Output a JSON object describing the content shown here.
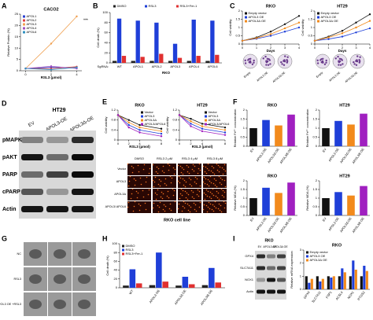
{
  "chart_data": [
    {
      "type": "line",
      "title": "CACO2",
      "ylabel": "Relative Protein (%)",
      "xlabel": "RSL3 (μmol)",
      "x": [
        0,
        2,
        4
      ],
      "xlim": [
        -0.4,
        4.4
      ],
      "xticks": [
        0,
        2,
        4
      ],
      "ylim": [
        0,
        25
      ],
      "yticks": [
        0,
        5,
        10,
        15,
        20,
        25
      ],
      "legend": "upper left",
      "annotation": "***",
      "series": [
        {
          "name": "APOL1",
          "color": "#2a3fd0",
          "values": [
            1,
            1.5,
            1.2
          ]
        },
        {
          "name": "APOL2",
          "color": "#e04040",
          "values": [
            1,
            1,
            1.8
          ]
        },
        {
          "name": "APOL3",
          "color": "#f0a050",
          "values": [
            1,
            12,
            24
          ]
        },
        {
          "name": "APOL4",
          "color": "#a050c0",
          "values": [
            1,
            2,
            1
          ]
        },
        {
          "name": "APOL6",
          "color": "#3090c0",
          "values": [
            1,
            0.5,
            1.5
          ]
        }
      ]
    },
    {
      "type": "bar",
      "ylabel": "Cell death (%)",
      "xlabel": "RKO",
      "category_label": "SgRNA:",
      "categories": [
        "WT",
        "APOL1",
        "APOL2",
        "APOL3",
        "APOL4",
        "APOL6"
      ],
      "ylim": [
        0,
        100
      ],
      "yticks": [
        0,
        20,
        40,
        60,
        80,
        100
      ],
      "legend": "upper center",
      "series": [
        {
          "name": "DMSO",
          "color": "#222222",
          "values": [
            4,
            4,
            4,
            4,
            4,
            4
          ]
        },
        {
          "name": "RSL3",
          "color": "#1f3fd8",
          "values": [
            88,
            84,
            80,
            38,
            86,
            84
          ]
        },
        {
          "name": "RSL3+Fer-1",
          "color": "#e03030",
          "values": [
            14,
            12,
            18,
            10,
            14,
            16
          ]
        }
      ]
    },
    {
      "type": "line",
      "title": "RKO",
      "ylabel": "Cell viability",
      "xlabel": "Days",
      "x": [
        0,
        1,
        2,
        3,
        4
      ],
      "xlim": [
        0,
        4
      ],
      "xticks": [
        0,
        1,
        2,
        3,
        4
      ],
      "ylim": [
        0,
        2
      ],
      "yticks": [
        0,
        0.5,
        1,
        1.5,
        2
      ],
      "legend": "upper left",
      "series": [
        {
          "name": "Empty vector",
          "color": "#111111",
          "values": [
            0.2,
            0.4,
            0.75,
            1.2,
            1.7
          ]
        },
        {
          "name": "APOL3 OE",
          "color": "#1f3fd8",
          "values": [
            0.2,
            0.32,
            0.5,
            0.75,
            1.0
          ]
        },
        {
          "name": "APOL3Δ OE",
          "color": "#f28a1c",
          "values": [
            0.2,
            0.36,
            0.6,
            0.95,
            1.3
          ]
        }
      ]
    },
    {
      "type": "line",
      "title": "HT29",
      "ylabel": "Cell viability",
      "xlabel": "Days",
      "x": [
        0,
        1,
        2,
        3,
        4
      ],
      "xlim": [
        0,
        4
      ],
      "xticks": [
        0,
        1,
        2,
        3,
        4
      ],
      "ylim": [
        0,
        2
      ],
      "yticks": [
        0,
        0.5,
        1,
        1.5,
        2
      ],
      "legend": "upper left",
      "series": [
        {
          "name": "Empty vector",
          "color": "#111111",
          "values": [
            0.2,
            0.45,
            0.8,
            1.3,
            1.8
          ]
        },
        {
          "name": "APOL3 OE",
          "color": "#1f3fd8",
          "values": [
            0.2,
            0.3,
            0.45,
            0.7,
            0.95
          ]
        },
        {
          "name": "APOL3Δ OE",
          "color": "#f28a1c",
          "values": [
            0.2,
            0.4,
            0.65,
            1.0,
            1.4
          ]
        }
      ]
    },
    {
      "type": "line",
      "title": "RKO",
      "ylabel": "Cell viability",
      "xlabel": "RSL3 (μmol)",
      "x": [
        0,
        2,
        4,
        8
      ],
      "xlim": [
        0,
        8
      ],
      "xticks": [
        0,
        2,
        4,
        8
      ],
      "ylim": [
        0,
        1.2
      ],
      "yticks": [
        0,
        0.4,
        0.8,
        1.2
      ],
      "legend": "upper right",
      "series": [
        {
          "name": "Vector",
          "color": "#111111",
          "values": [
            1,
            0.8,
            0.6,
            0.45
          ]
        },
        {
          "name": "APOL3",
          "color": "#1f3fd8",
          "values": [
            1,
            0.6,
            0.4,
            0.25
          ]
        },
        {
          "name": "APOL3Δ",
          "color": "#f28a1c",
          "values": [
            1,
            0.7,
            0.5,
            0.35
          ]
        },
        {
          "name": "APOL3/APOL6",
          "color": "#a020c0",
          "values": [
            1,
            0.5,
            0.3,
            0.15
          ]
        }
      ]
    },
    {
      "type": "line",
      "title": "HT29",
      "ylabel": "Cell viability",
      "xlabel": "RSL3 (μmol)",
      "x": [
        0,
        2,
        4,
        8
      ],
      "xlim": [
        0,
        8
      ],
      "xticks": [
        0,
        2,
        4,
        8
      ],
      "ylim": [
        0,
        1.2
      ],
      "yticks": [
        0,
        0.4,
        0.8,
        1.2
      ],
      "legend": "upper right",
      "series": [
        {
          "name": "Vector",
          "color": "#111111",
          "values": [
            1,
            0.85,
            0.65,
            0.5
          ]
        },
        {
          "name": "APOL3",
          "color": "#1f3fd8",
          "values": [
            1,
            0.65,
            0.45,
            0.3
          ]
        },
        {
          "name": "APOL3Δ",
          "color": "#f28a1c",
          "values": [
            1,
            0.75,
            0.55,
            0.4
          ]
        },
        {
          "name": "APOL3/APOL6",
          "color": "#a020c0",
          "values": [
            1,
            0.55,
            0.35,
            0.2
          ]
        }
      ]
    },
    {
      "type": "bar",
      "title": "RKO",
      "ylabel": "Relative Fe²⁺ concentration",
      "categories": [
        "EV",
        "APOL3 OE",
        "APOL3Δ OE",
        "APOL3/6 OE"
      ],
      "values": [
        1,
        1.45,
        1.15,
        1.75
      ],
      "colors": [
        "#111111",
        "#1f3fd8",
        "#f28a1c",
        "#a020c0"
      ],
      "ylim": [
        0,
        2
      ],
      "yticks": [
        0,
        0.5,
        1,
        1.5,
        2
      ]
    },
    {
      "type": "bar",
      "title": "HT29",
      "ylabel": "Relative Fe²⁺ concentration",
      "categories": [
        "EV",
        "APOL3 OE",
        "APOL3Δ OE",
        "APOL3/6 OE"
      ],
      "values": [
        1,
        1.4,
        1.2,
        1.8
      ],
      "colors": [
        "#111111",
        "#1f3fd8",
        "#f28a1c",
        "#a020c0"
      ],
      "ylim": [
        0,
        2
      ],
      "yticks": [
        0,
        0.5,
        1,
        1.5,
        2
      ]
    },
    {
      "type": "bar",
      "title": "RKO",
      "ylabel": "Relative MDA (%)",
      "categories": [
        "EV",
        "APOL3 OE",
        "APOL3Δ OE",
        "APOL3/6 OE"
      ],
      "values": [
        1,
        1.6,
        1.3,
        1.9
      ],
      "colors": [
        "#111111",
        "#1f3fd8",
        "#f28a1c",
        "#a020c0"
      ],
      "ylim": [
        0,
        2
      ],
      "yticks": [
        0,
        0.5,
        1,
        1.5,
        2
      ]
    },
    {
      "type": "bar",
      "title": "HT29",
      "ylabel": "Relative MDA (%)",
      "categories": [
        "EV",
        "APOL3 OE",
        "APOL3Δ OE",
        "APOL3/6 OE"
      ],
      "values": [
        1,
        1.35,
        1.15,
        1.7
      ],
      "colors": [
        "#111111",
        "#1f3fd8",
        "#f28a1c",
        "#a020c0"
      ],
      "ylim": [
        0,
        2
      ],
      "yticks": [
        0,
        0.5,
        1,
        1.5,
        2
      ]
    },
    {
      "type": "bar",
      "ylabel": "Cell death (%)",
      "categories": [
        "WT",
        "APOL3 OE",
        "APOL3Δ OE",
        "APOL3/6 OE"
      ],
      "ylim": [
        0,
        100
      ],
      "yticks": [
        0,
        20,
        40,
        60,
        80,
        100
      ],
      "legend": "upper left",
      "series": [
        {
          "name": "DMSO",
          "color": "#222222",
          "values": [
            5,
            6,
            5,
            6
          ]
        },
        {
          "name": "RSL3",
          "color": "#1f3fd8",
          "values": [
            42,
            80,
            25,
            45
          ]
        },
        {
          "name": "RSL3+Fer-1",
          "color": "#e03030",
          "values": [
            10,
            14,
            8,
            12
          ]
        }
      ]
    },
    {
      "type": "bar",
      "title": "RKO",
      "ylabel": "Relative mRNA expression",
      "categories": [
        "GPX4",
        "SLC7A11",
        "FSP1",
        "ACSL4",
        "NOX1",
        "PTGS2"
      ],
      "ylim": [
        0,
        3
      ],
      "yticks": [
        0,
        1,
        2,
        3
      ],
      "legend": "upper left",
      "series": [
        {
          "name": "Empty vector",
          "color": "#111111",
          "values": [
            1,
            1,
            1,
            1,
            1,
            1
          ]
        },
        {
          "name": "APOL3 OE",
          "color": "#1f3fd8",
          "values": [
            0.5,
            0.6,
            0.9,
            1.6,
            2.2,
            1.8
          ]
        },
        {
          "name": "APOL3Δ OE",
          "color": "#f28a1c",
          "values": [
            0.8,
            0.8,
            1,
            1.3,
            1.5,
            1.4
          ]
        }
      ]
    }
  ],
  "panels": {
    "letters": [
      "A",
      "B",
      "C",
      "D",
      "E",
      "F",
      "G",
      "H",
      "I"
    ],
    "C": {
      "labels": [
        "Empty",
        "APOL3 OE",
        "APOL3Δ OE"
      ]
    },
    "D": {
      "title": "HT29",
      "columns": [
        "EV",
        "APOL3-OE",
        "APOL3Δ-OE"
      ],
      "rows": [
        "pMAPK",
        "pAKT",
        "PARP",
        "cPARP",
        "Actin"
      ]
    },
    "E": {
      "columns": [
        "DMSO",
        "RSL3 2 μM",
        "RSL3 4 μM",
        "RSL3 8 μM"
      ],
      "rows": [
        "Vector",
        "APOL3",
        "APOL3Δ",
        "APOL3/ APOL6"
      ],
      "caption": "RKO cell line"
    },
    "G": {
      "rows": [
        "NC",
        "RSL3",
        "APOL3 OE +RSL3"
      ]
    },
    "I": {
      "title": "RKO",
      "columns": [
        "EV",
        "APOL3 OE",
        "APOL3Δ OE"
      ],
      "rows": [
        "GPX4",
        "SLC7A11",
        "NOX1",
        "Actin"
      ]
    }
  }
}
